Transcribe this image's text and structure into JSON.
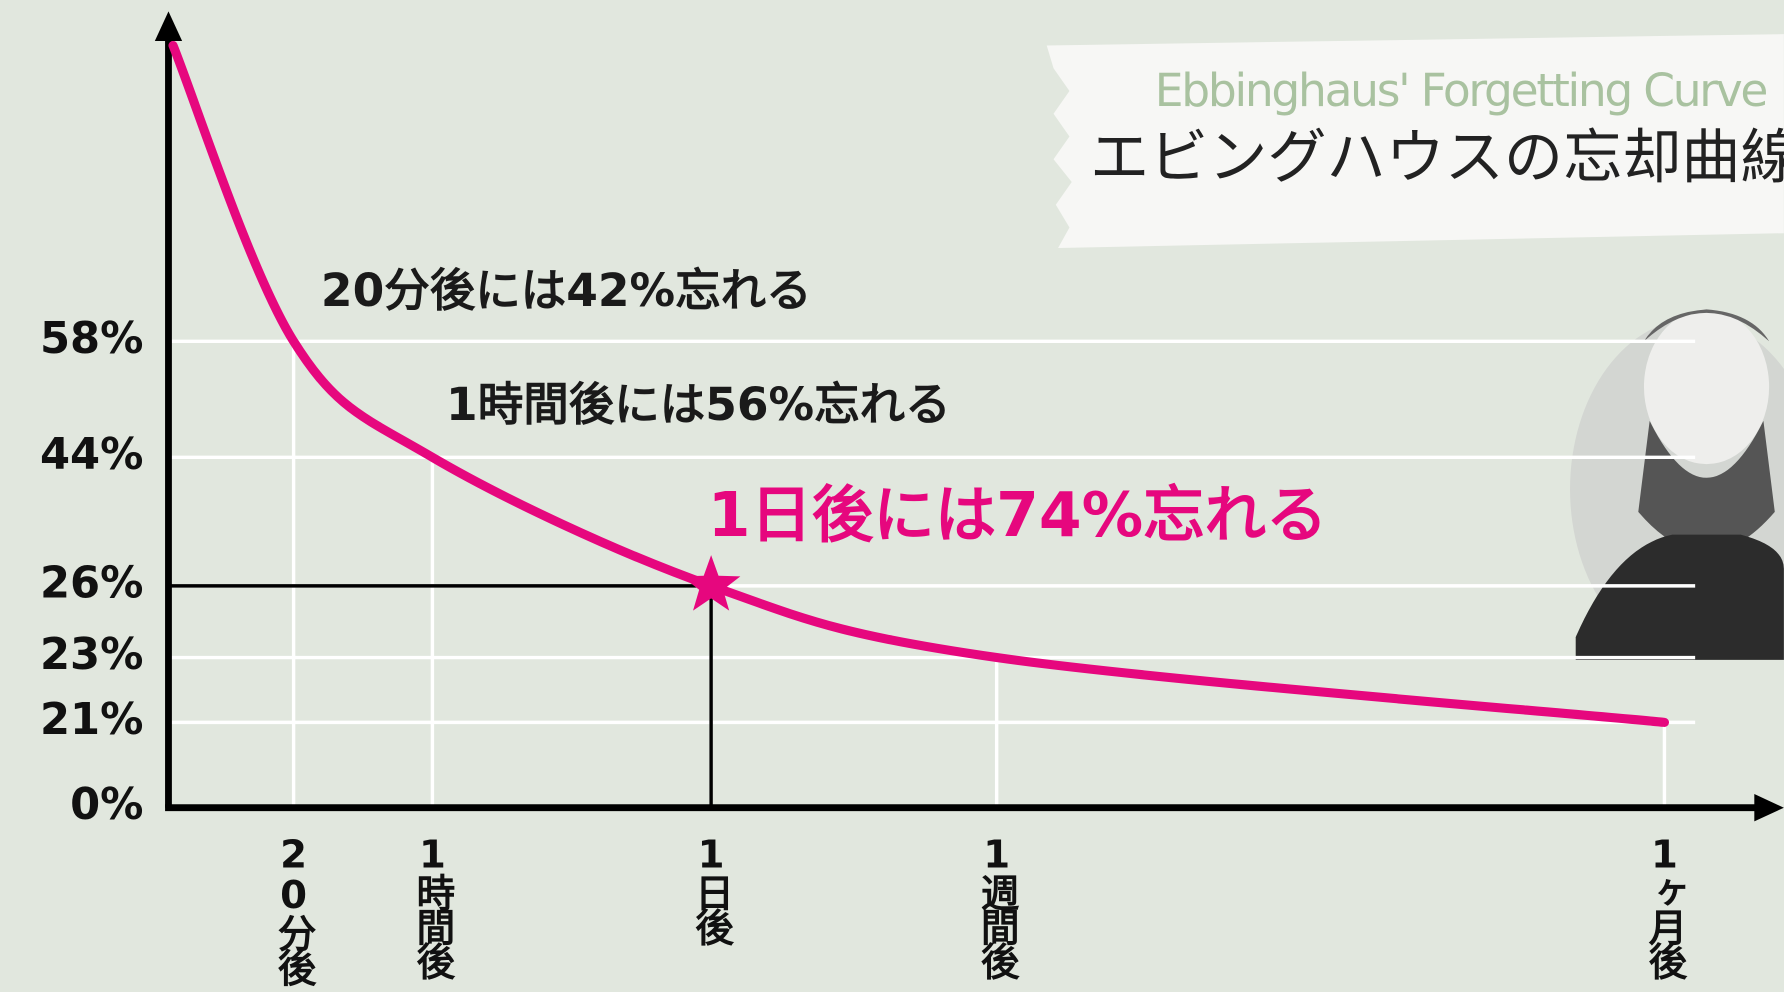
{
  "chart_data": {
    "type": "line",
    "title": "エビングハウスの忘却曲線",
    "subtitle": "Ebbinghaus' Forgetting Curve",
    "categories": [
      null,
      "20分後",
      "1時間後",
      "1日後",
      "1週間後",
      "1ヶ月後"
    ],
    "values": [
      100,
      58,
      44,
      26,
      23,
      21
    ],
    "color": "#e6077e",
    "ylim": [
      0,
      100
    ],
    "yticks": [
      {
        "value": 0,
        "label": "0%"
      },
      {
        "value": 21,
        "label": "21%"
      },
      {
        "value": 23,
        "label": "23%"
      },
      {
        "value": 26,
        "label": "26%"
      },
      {
        "value": 44,
        "label": "44%"
      },
      {
        "value": 58,
        "label": "58%"
      }
    ],
    "grid": true,
    "annotations": [
      "20分後には42%忘れる",
      "1時間後には56%忘れる",
      "1日後には74%忘れる"
    ]
  }
}
